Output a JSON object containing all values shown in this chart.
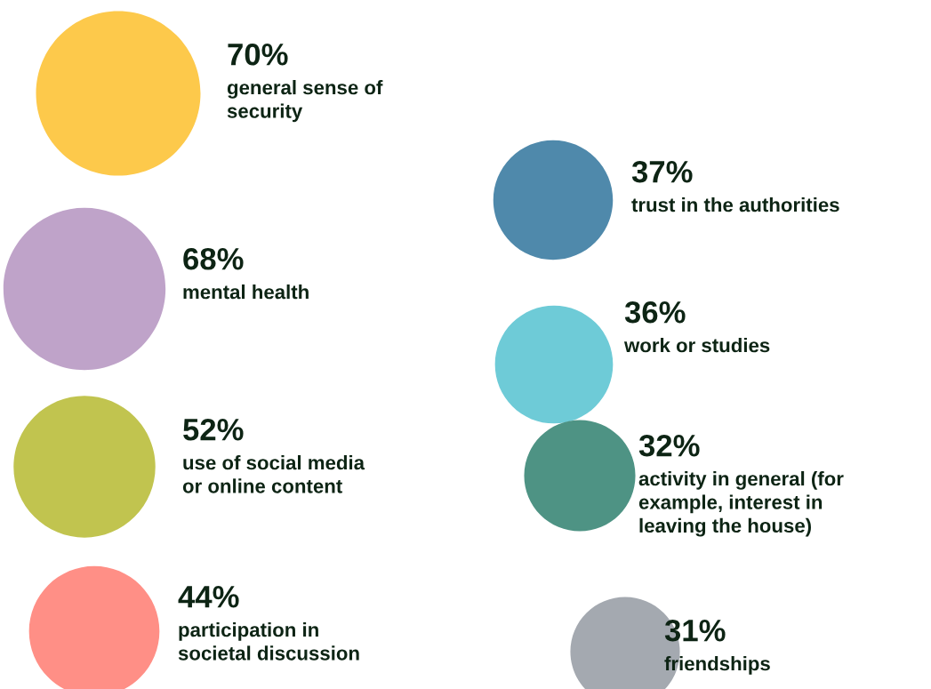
{
  "chart_data": {
    "type": "other",
    "categories": [
      "general sense of\nsecurity",
      "mental health",
      "use of social media\nor online content",
      "participation in\nsocietal discussion",
      "trust in the authorities",
      "work or studies",
      "activity in general (for\nexample, interest in\nleaving the house)",
      "friendships"
    ],
    "values": [
      70,
      68,
      52,
      44,
      37,
      36,
      32,
      31
    ],
    "value_labels": [
      "70%",
      "68%",
      "52%",
      "44%",
      "37%",
      "36%",
      "32%",
      "31%"
    ],
    "colors": [
      "#fdc94b",
      "#bfa3c9",
      "#c1c44f",
      "#ff8f86",
      "#4f89ab",
      "#6ecbd7",
      "#4e9384",
      "#a4a9b0"
    ]
  }
}
